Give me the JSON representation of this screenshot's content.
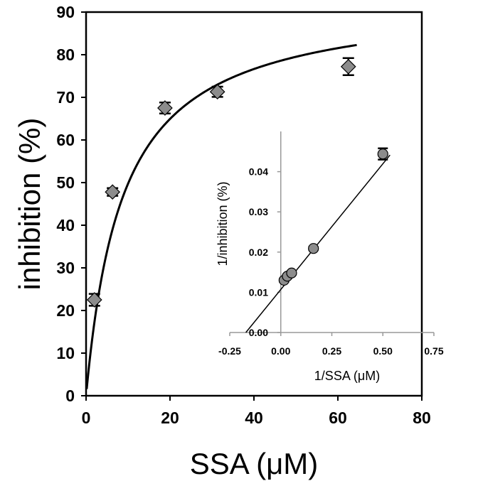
{
  "chart_data": [
    {
      "type": "scatter",
      "xlabel": "SSA (μM)",
      "ylabel": "inhibition (%)",
      "xlim": [
        0,
        80
      ],
      "ylim": [
        0,
        90
      ],
      "xticks": [
        "0",
        "20",
        "40",
        "60",
        "80"
      ],
      "yticks": [
        "0",
        "10",
        "20",
        "30",
        "40",
        "50",
        "60",
        "70",
        "80",
        "90"
      ],
      "grid": false,
      "marker": "diamond",
      "marker_color": "#8c8c8c",
      "fit": {
        "type": "hyperbolic",
        "vmax": 93.5,
        "km": 8.8,
        "x_start": 0.15,
        "x_end": 64.5
      },
      "series": [
        {
          "x": [
            2,
            6.3,
            18.8,
            31.3,
            62.5
          ],
          "y": [
            22.5,
            47.8,
            67.5,
            71.3,
            77.2
          ],
          "error": [
            1.4,
            0.9,
            1.3,
            1.2,
            2.0
          ]
        }
      ]
    },
    {
      "type": "scatter",
      "xlabel": "1/SSA (μM)",
      "ylabel": "1/inhibition  (%)",
      "xlim": [
        -0.25,
        0.75
      ],
      "ylim": [
        0,
        0.05
      ],
      "xticks": [
        "-0.25",
        "0.00",
        "0.25",
        "0.50",
        "0.75"
      ],
      "yticks": [
        "0.00",
        "0.01",
        "0.02",
        "0.03",
        "0.04"
      ],
      "grid": false,
      "marker": "circle",
      "marker_color": "#8c8c8c",
      "fit": {
        "type": "linear",
        "intercept": 0.0107,
        "slope": 0.0625,
        "x_start": -0.1712,
        "x_end": 0.535
      },
      "series": [
        {
          "x": [
            0.016,
            0.032,
            0.053,
            0.16,
            0.5
          ],
          "y": [
            0.013,
            0.014,
            0.0148,
            0.0209,
            0.0444
          ],
          "error": [
            0.0004,
            0.0004,
            0.0004,
            0.0004,
            0.0014
          ]
        }
      ]
    }
  ]
}
